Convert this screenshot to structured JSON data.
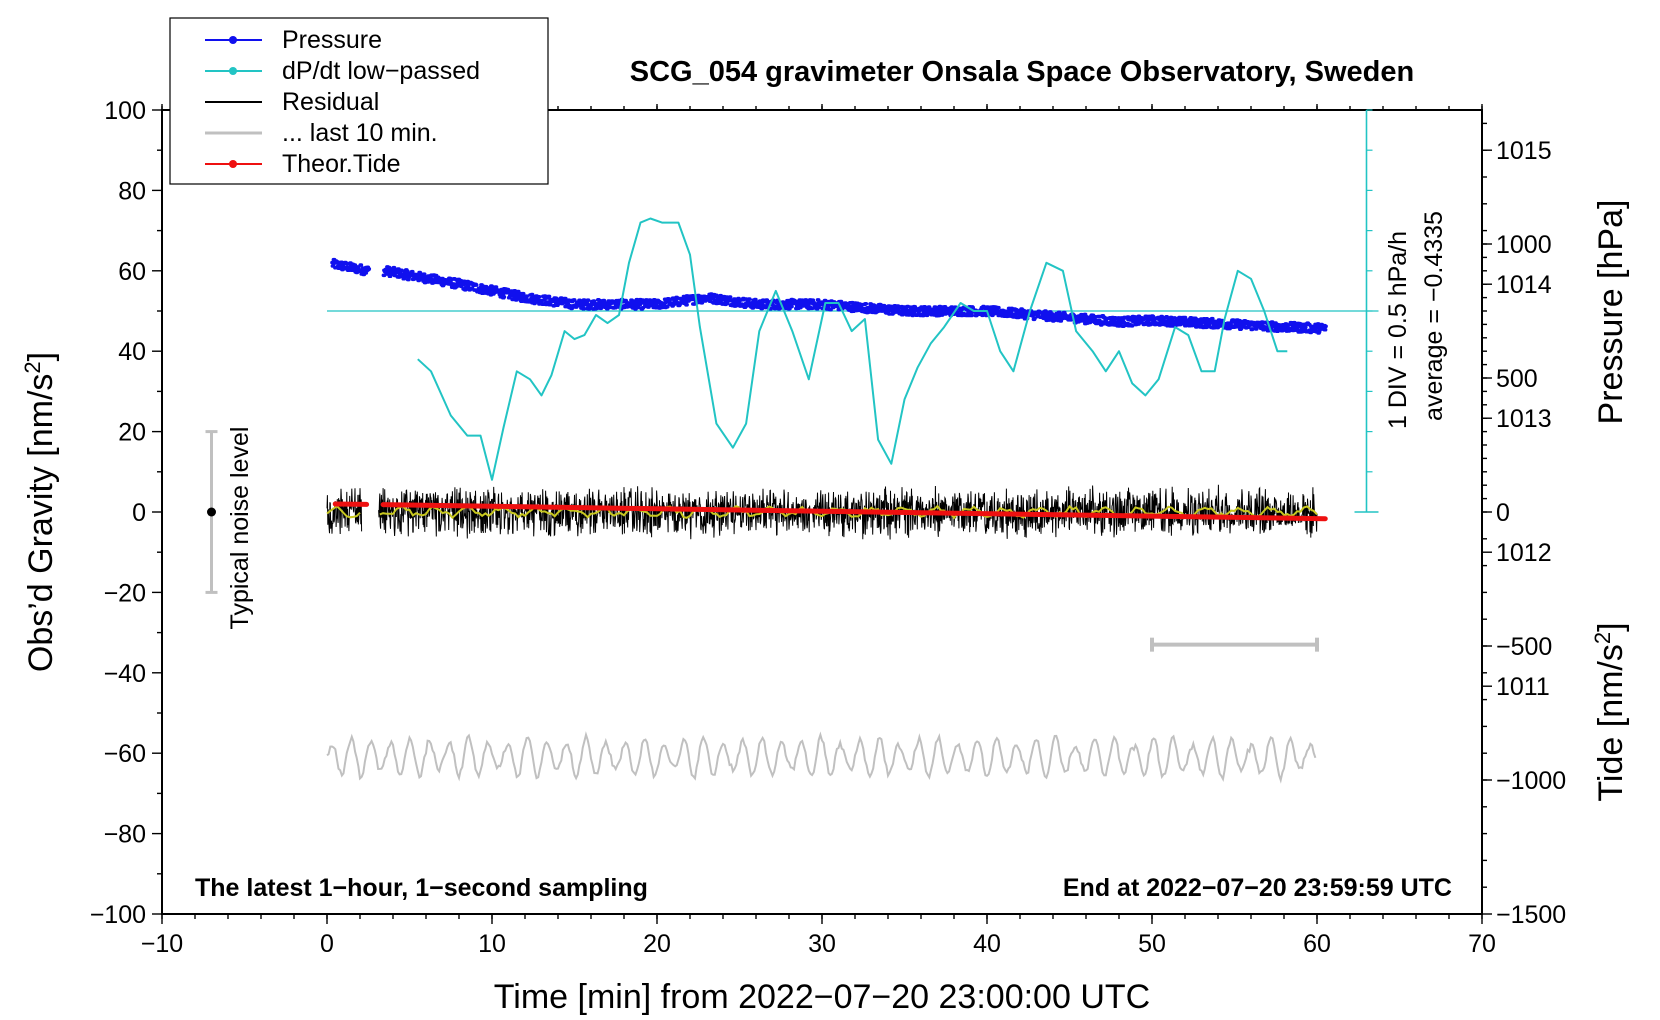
{
  "chart_data": {
    "type": "line",
    "title": "SCG_054 gravimeter Onsala Space Observatory, Sweden",
    "xlabel": "Time [min] from 2022−07−20 23:00:00 UTC",
    "xlim": [
      -10,
      70
    ],
    "x_ticks": [
      "−10",
      "0",
      "10",
      "20",
      "30",
      "40",
      "50",
      "60",
      "70"
    ],
    "left_axis": {
      "label": "Obs’d Gravity [nm/s",
      "label_sup": "2",
      "label_end": "]",
      "ylim": [
        -100,
        100
      ],
      "ticks": [
        "100",
        "80",
        "60",
        "40",
        "20",
        "0",
        "−20",
        "−40",
        "−60",
        "−80",
        "−100"
      ]
    },
    "pressure_axis": {
      "label": "Pressure [hPa]",
      "ylim": [
        1009.3,
        1015.3
      ],
      "ticks": [
        "1015",
        "1014",
        "1013",
        "1012",
        "1011"
      ],
      "tick_values": [
        1015,
        1014,
        1013,
        1012,
        1011
      ]
    },
    "tide_axis": {
      "label": "Tide [nm/s",
      "label_sup": "2",
      "label_end": "]",
      "ylim": [
        -1500,
        1500
      ],
      "ticks": [
        "1000",
        "500",
        "0",
        "−500",
        "−1000",
        "−1500"
      ],
      "tick_values": [
        1000,
        500,
        0,
        -500,
        -1000,
        -1500
      ]
    },
    "dpdt_scale": {
      "text": "1 DIV = 0.5 hPa/h",
      "average_text": "average = −0.4335",
      "baseline_gravity": 50
    },
    "noise_bar": {
      "label": "Typical noise level",
      "x": -7,
      "range": [
        -20,
        20
      ]
    },
    "ten_min_bar": {
      "x_range": [
        50,
        60
      ],
      "gravity": -33
    },
    "legend": [
      {
        "name": "Pressure",
        "color": "#1010ee",
        "marker": true
      },
      {
        "name": "dP/dt low−passed",
        "color": "#22c4c4",
        "marker": true
      },
      {
        "name": "Residual",
        "color": "#000000",
        "marker": false
      },
      {
        "name": "... last 10 min.",
        "color": "#c0c0c0",
        "marker": false
      },
      {
        "name": "Theor.Tide",
        "color": "#ee1010",
        "marker": true
      }
    ],
    "series": [
      {
        "name": "Pressure",
        "axis": "pressure_hPa",
        "color": "#1010ee",
        "x": [
          0.3,
          2.5,
          3.5,
          8,
          12,
          15,
          20,
          23,
          26,
          30,
          35,
          40,
          45,
          48,
          50,
          55,
          58,
          60.5
        ],
        "values": [
          1014.15,
          1014.1,
          1014.1,
          1014.0,
          1013.9,
          1013.85,
          1013.85,
          1013.9,
          1013.85,
          1013.85,
          1013.8,
          1013.8,
          1013.75,
          1013.72,
          1013.73,
          1013.7,
          1013.68,
          1013.67
        ]
      },
      {
        "name": "dP/dt low−passed",
        "axis": "gravity",
        "color": "#22c4c4",
        "x": [
          5.5,
          6.3,
          7.5,
          8.5,
          9.3,
          10,
          10.7,
          11.5,
          12.3,
          13,
          13.6,
          14.4,
          15,
          15.6,
          16.3,
          17,
          17.7,
          18.3,
          19,
          19.6,
          20.3,
          21.3,
          22,
          22.6,
          23.6,
          24.6,
          25.4,
          26.2,
          27.2,
          28.2,
          29.2,
          30.2,
          31,
          31.8,
          32.6,
          33.4,
          34.2,
          35,
          35.8,
          36.6,
          37.4,
          38.4,
          39.2,
          40,
          40.8,
          41.6,
          42.6,
          43.6,
          44.6,
          45.4,
          46.4,
          47.2,
          48,
          48.8,
          49.6,
          50.4,
          51.4,
          52.2,
          53,
          53.8,
          54.4,
          55.2,
          56,
          56.8,
          57.6,
          58.2
        ],
        "values": [
          38,
          35,
          24,
          19,
          19,
          8,
          21,
          35,
          33,
          29,
          34,
          45,
          43,
          44,
          49,
          47,
          49,
          62,
          72,
          73,
          72,
          72,
          64,
          46,
          22,
          16,
          22,
          45,
          55,
          45,
          33,
          52,
          52,
          45,
          48,
          18,
          12,
          28,
          36,
          42,
          46,
          52,
          50,
          50,
          40,
          35,
          50,
          62,
          60,
          45,
          40,
          35,
          40,
          32,
          29,
          33,
          46,
          44,
          35,
          35,
          48,
          60,
          58,
          50,
          40,
          40
        ]
      },
      {
        "name": "Residual",
        "axis": "gravity",
        "color": "#000000",
        "x_range": [
          0,
          60
        ],
        "gap": [
          2.1,
          3.1
        ],
        "center": 0,
        "amplitude": 7
      },
      {
        "name": "... last 10 min.",
        "axis": "gravity",
        "color": "#c0c0c0",
        "x_range": [
          0,
          60
        ],
        "center": -61,
        "amplitude": 5
      },
      {
        "name": "Theor.Tide",
        "axis": "tide_nm_s2",
        "color": "#ee1010",
        "gap": [
          2.4,
          3.4
        ],
        "x": [
          0.5,
          60.5
        ],
        "values": [
          30,
          -25
        ]
      }
    ],
    "annotations": {
      "bottom_left": "The latest 1−hour, 1−second sampling",
      "bottom_right": "End at 2022−07−20 23:59:59 UTC"
    }
  }
}
